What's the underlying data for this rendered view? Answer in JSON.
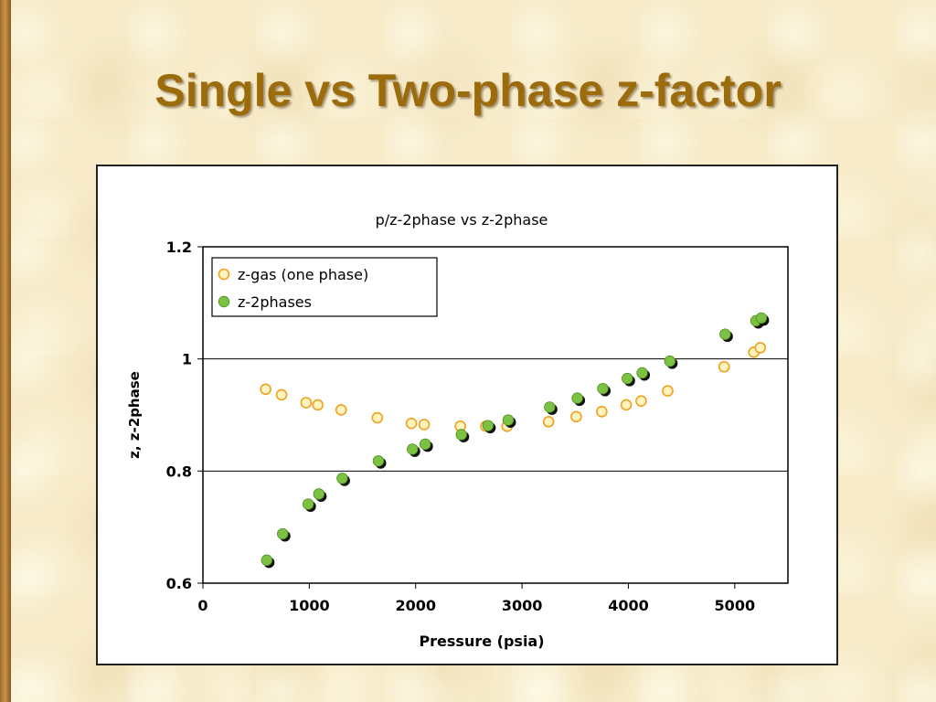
{
  "slide": {
    "title": "Single vs Two-phase z-factor"
  },
  "colors": {
    "title": "#9c6b0c",
    "one_phase_fill": "#fff3c0",
    "one_phase_stroke": "#f0a020",
    "two_phase_fill": "#7cc242",
    "two_phase_shadow": "#111111"
  },
  "chart_data": {
    "type": "scatter",
    "title": "p/z-2phase vs z-2phase",
    "xlabel": "Pressure (psia)",
    "ylabel": "z, z-2phase",
    "xlim": [
      0,
      5500
    ],
    "ylim": [
      0.6,
      1.2
    ],
    "x_ticks": [
      "0",
      "1000",
      "2000",
      "3000",
      "4000",
      "5000"
    ],
    "y_ticks": [
      "0.6",
      "0.8",
      "1",
      "1.2"
    ],
    "grid": "horizontal major",
    "legend": "top-left",
    "series": [
      {
        "name": "z-gas (one phase)",
        "marker": "hollow-circle",
        "points": [
          [
            590,
            0.946
          ],
          [
            740,
            0.936
          ],
          [
            970,
            0.922
          ],
          [
            1080,
            0.918
          ],
          [
            1300,
            0.909
          ],
          [
            1640,
            0.895
          ],
          [
            1960,
            0.885
          ],
          [
            2080,
            0.883
          ],
          [
            2420,
            0.88
          ],
          [
            2660,
            0.88
          ],
          [
            2860,
            0.88
          ],
          [
            3250,
            0.888
          ],
          [
            3510,
            0.897
          ],
          [
            3750,
            0.906
          ],
          [
            3980,
            0.918
          ],
          [
            4120,
            0.925
          ],
          [
            4370,
            0.943
          ],
          [
            4900,
            0.986
          ],
          [
            5180,
            1.012
          ],
          [
            5240,
            1.02
          ]
        ]
      },
      {
        "name": "z-2phases",
        "marker": "filled-circle",
        "points": [
          [
            600,
            0.641
          ],
          [
            750,
            0.688
          ],
          [
            990,
            0.741
          ],
          [
            1090,
            0.759
          ],
          [
            1310,
            0.787
          ],
          [
            1650,
            0.818
          ],
          [
            1970,
            0.839
          ],
          [
            2090,
            0.848
          ],
          [
            2430,
            0.865
          ],
          [
            2680,
            0.881
          ],
          [
            2870,
            0.891
          ],
          [
            3260,
            0.914
          ],
          [
            3520,
            0.93
          ],
          [
            3760,
            0.947
          ],
          [
            3990,
            0.965
          ],
          [
            4130,
            0.975
          ],
          [
            4390,
            0.996
          ],
          [
            4910,
            1.044
          ],
          [
            5200,
            1.068
          ],
          [
            5250,
            1.073
          ]
        ]
      }
    ]
  }
}
